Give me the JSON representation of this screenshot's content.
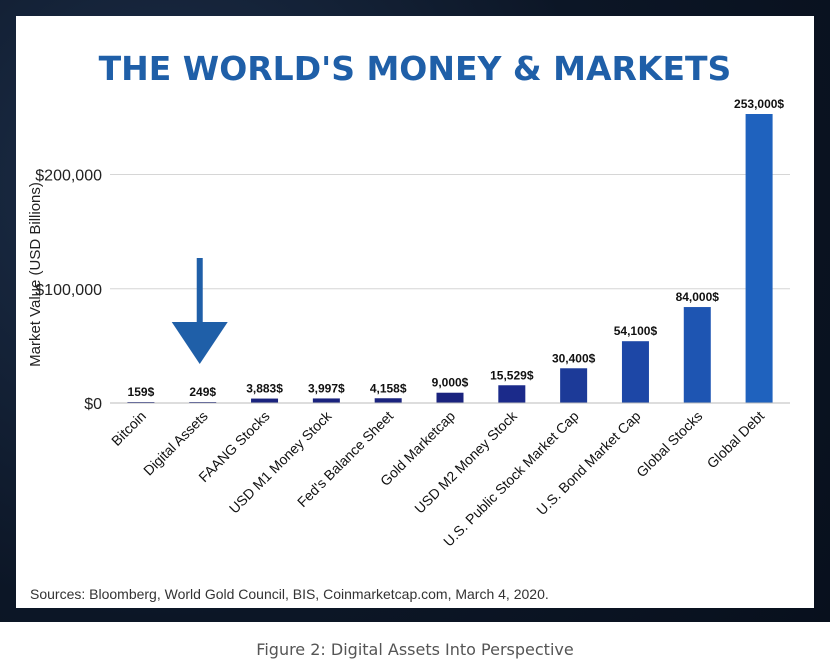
{
  "chart_data": {
    "type": "bar",
    "title": "THE WORLD'S MONEY & MARKETS",
    "ylabel": "Market Value (USD Billions)",
    "xlabel": "",
    "ylim": [
      0,
      253000
    ],
    "yticks": [
      0,
      100000,
      200000
    ],
    "ytick_labels": [
      "$0",
      "$100,000",
      "$200,000"
    ],
    "grid": true,
    "categories": [
      "Bitcoin",
      "Digital Assets",
      "FAANG Stocks",
      "USD M1 Money Stock",
      "Fed's Balance Sheet",
      "Gold Marketcap",
      "USD M2 Money Stock",
      "U.S. Public Stock Market Cap",
      "U.S. Bond Market Cap",
      "Global Stocks",
      "Global Debt"
    ],
    "values": [
      159,
      249,
      3883,
      3997,
      4158,
      9000,
      15529,
      30400,
      54100,
      84000,
      253000
    ],
    "value_labels": [
      "159$",
      "249$",
      "3,883$",
      "3,997$",
      "4,158$",
      "9,000$",
      "15,529$",
      "30,400$",
      "54,100$",
      "84,000$",
      "253,000$"
    ],
    "annotation": {
      "type": "arrow",
      "target_category": "Digital Assets",
      "color": "#1f5fa8"
    },
    "bar_colors": [
      "#1a237e",
      "#1a237e",
      "#1a237e",
      "#1a237e",
      "#1a237e",
      "#1a237e",
      "#1b2a8a",
      "#1c3a98",
      "#1d47a6",
      "#1e55b2",
      "#1f62be"
    ],
    "source": "Sources: Bloomberg, World Gold Council, BIS, Coinmarketcap.com, March 4, 2020.",
    "title_color": "#1f5fa8"
  },
  "caption": "Figure 2: Digital Assets Into Perspective"
}
